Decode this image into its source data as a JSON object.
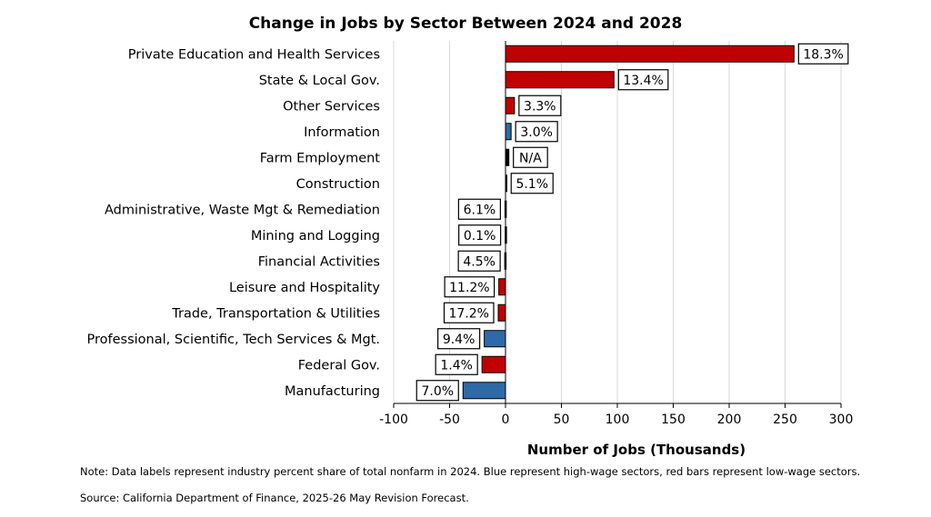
{
  "chart_data": {
    "type": "bar",
    "orientation": "horizontal",
    "title": "Change in Jobs by Sector Between 2024 and 2028",
    "xlabel": "Number of Jobs (Thousands)",
    "ylabel": "",
    "xlim": [
      -100,
      300
    ],
    "xticks": [
      -100,
      -50,
      0,
      50,
      100,
      150,
      200,
      250,
      300
    ],
    "grid": "vertical",
    "categories": [
      "Private Education and Health Services",
      "State & Local Gov.",
      "Other Services",
      "Information",
      "Farm Employment",
      "Construction",
      "Administrative, Waste Mgt & Remediation",
      "Mining and Logging",
      "Financial Activities",
      "Leisure and Hospitality",
      "Trade, Transportation & Utilities",
      "Professional, Scientific, Tech Services & Mgt.",
      "Federal Gov.",
      "Manufacturing"
    ],
    "values": [
      258,
      97,
      8,
      5,
      3,
      1,
      -0.5,
      -0.3,
      -0.7,
      -6,
      -6.5,
      -19,
      -21,
      -38
    ],
    "data_labels": [
      "18.3%",
      "13.4%",
      "3.3%",
      "3.0%",
      "N/A",
      "5.1%",
      "6.1%",
      "0.1%",
      "4.5%",
      "11.2%",
      "17.2%",
      "9.4%",
      "1.4%",
      "7.0%"
    ],
    "bar_colors": [
      "#c00000",
      "#c00000",
      "#c00000",
      "#2e6aa8",
      "#000000",
      "#000000",
      "#000000",
      "#000000",
      "#000000",
      "#c00000",
      "#c00000",
      "#2e6aa8",
      "#c00000",
      "#2e6aa8"
    ]
  },
  "notes": {
    "line1": "Note: Data labels represent industry percent share of total nonfarm in 2024. Blue represent high-wage sectors, red bars represent low-wage sectors.",
    "line2": "Source: California Department of Finance, 2025-26 May Revision Forecast."
  }
}
